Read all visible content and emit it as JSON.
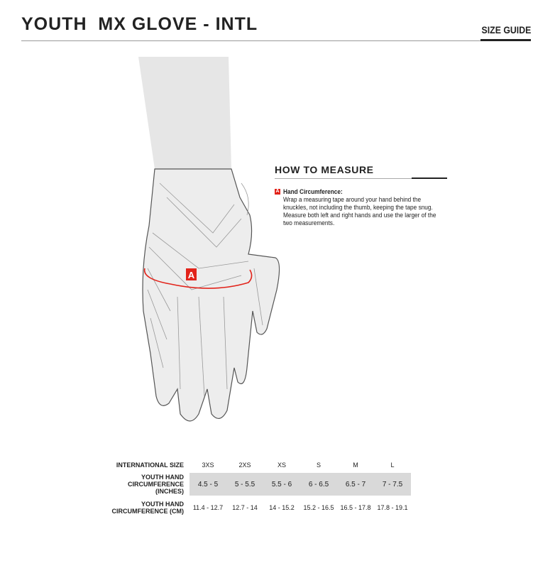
{
  "header": {
    "title": "YOUTH  MX GLOVE - INTL",
    "section": "SIZE GUIDE"
  },
  "illustration": {
    "marker": "A",
    "accent": "#e2231a"
  },
  "how_to_measure": {
    "heading": "HOW TO MEASURE",
    "marker": "A",
    "item_title": "Hand Circumference:",
    "item_text": "Wrap a measuring tape around your hand behind the knuckles, not including the thumb, keeping the tape snug. Measure both left and right hands and use the larger of the two measurements."
  },
  "size_table": {
    "rows": [
      {
        "label": "INTERNATIONAL SIZE",
        "values": [
          "3XS",
          "2XS",
          "XS",
          "S",
          "M",
          "L"
        ]
      },
      {
        "label": "YOUTH HAND CIRCUMFERENCE (INCHES)",
        "values": [
          "4.5 - 5",
          "5 - 5.5",
          "5.5 - 6",
          "6 - 6.5",
          "6.5 - 7",
          "7 - 7.5"
        ]
      },
      {
        "label": "YOUTH HAND CIRCUMFERENCE (CM)",
        "values": [
          "11.4 - 12.7",
          "12.7 - 14",
          "14 - 15.2",
          "15.2 - 16.5",
          "16.5 - 17.8",
          "17.8 - 19.1"
        ]
      }
    ]
  }
}
